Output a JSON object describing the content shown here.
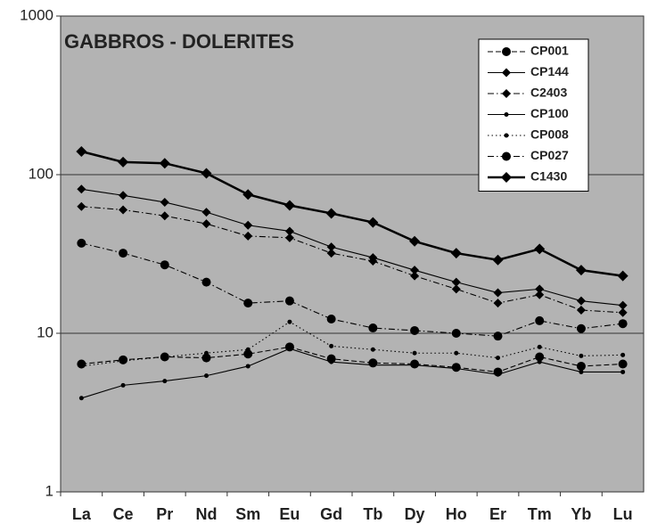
{
  "chart_data": {
    "type": "line",
    "title": "GABBROS - DOLERITES",
    "categories": [
      "La",
      "Ce",
      "Pr",
      "Nd",
      "Sm",
      "Eu",
      "Gd",
      "Tb",
      "Dy",
      "Ho",
      "Er",
      "Tm",
      "Yb",
      "Lu"
    ],
    "ylim": [
      1,
      1000
    ],
    "yticks": [
      1,
      10,
      100,
      1000
    ],
    "log_y": true,
    "grid": true,
    "legend": "upper right",
    "series": [
      {
        "name": "CP001",
        "color": "#000000",
        "dash": "dashed",
        "marker": "circle",
        "weight": "normal",
        "values": [
          6.4,
          6.8,
          7.1,
          7.0,
          7.4,
          8.2,
          6.9,
          6.5,
          6.4,
          6.1,
          5.7,
          7.1,
          6.2,
          6.4
        ]
      },
      {
        "name": "CP144",
        "color": "#000000",
        "dash": "solid",
        "marker": "diamond",
        "weight": "normal",
        "values": [
          81,
          74,
          67,
          58,
          48,
          44,
          35,
          30,
          25,
          21,
          18,
          19,
          16,
          15
        ]
      },
      {
        "name": "C2403",
        "color": "#000000",
        "dash": "dashdot",
        "marker": "diamond",
        "weight": "normal",
        "values": [
          63,
          60,
          55,
          49,
          41,
          40,
          32,
          28.5,
          23,
          19,
          15.5,
          17.5,
          14,
          13.5
        ]
      },
      {
        "name": "CP100",
        "color": "#000000",
        "dash": "solid",
        "marker": "dot",
        "weight": "normal",
        "values": [
          3.9,
          4.7,
          5.0,
          5.4,
          6.2,
          8.0,
          6.6,
          6.3,
          6.3,
          6.0,
          5.5,
          6.6,
          5.7,
          5.7
        ]
      },
      {
        "name": "CP008",
        "color": "#000000",
        "dash": "dotted",
        "marker": "dot",
        "weight": "normal",
        "values": [
          6.2,
          6.7,
          7.1,
          7.5,
          7.9,
          11.8,
          8.3,
          7.9,
          7.5,
          7.5,
          7.0,
          8.2,
          7.2,
          7.3
        ]
      },
      {
        "name": "CP027",
        "color": "#000000",
        "dash": "dashdot",
        "marker": "circle",
        "weight": "normal",
        "values": [
          37,
          32,
          27,
          21,
          15.5,
          16,
          12.3,
          10.8,
          10.4,
          10,
          9.6,
          12,
          10.7,
          11.5
        ]
      },
      {
        "name": "C1430",
        "color": "#000000",
        "dash": "solid",
        "marker": "diamond",
        "weight": "bold",
        "values": [
          140,
          120,
          118,
          102,
          75,
          64,
          57,
          50,
          38,
          32,
          29,
          34,
          25,
          23
        ]
      }
    ]
  }
}
